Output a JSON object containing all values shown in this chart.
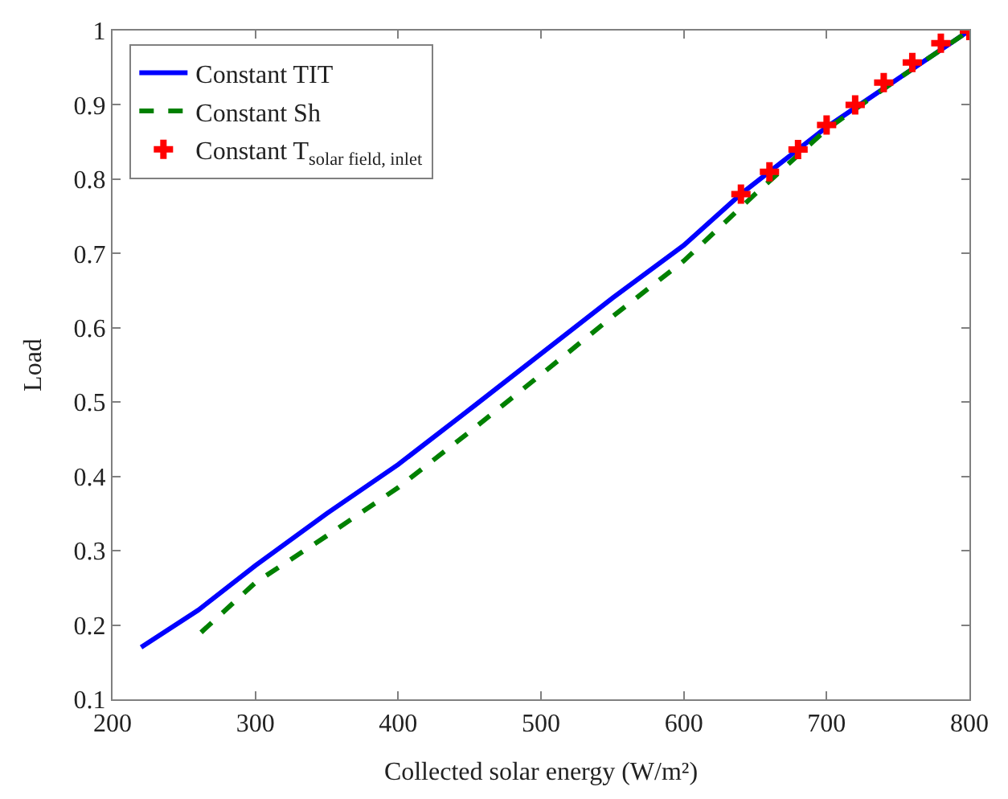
{
  "chart_data": {
    "type": "line",
    "xlabel": "Collected solar energy (W/m²)",
    "ylabel": "Load",
    "xlim": [
      200,
      800
    ],
    "xticks": [
      200,
      300,
      400,
      500,
      600,
      700,
      800
    ],
    "ylim": [
      0.1,
      1
    ],
    "yticks": [
      0.1,
      0.2,
      0.3,
      0.4,
      0.5,
      0.6,
      0.7,
      0.8,
      0.9,
      1
    ],
    "legend": "top left",
    "series": [
      {
        "name": "Constant TIT",
        "color": "#0000ff",
        "line_style": "solid",
        "x": [
          220,
          260,
          300,
          350,
          400,
          450,
          500,
          550,
          600,
          640,
          700,
          750,
          800
        ],
        "values": [
          0.17,
          0.22,
          0.28,
          0.35,
          0.416,
          0.49,
          0.565,
          0.64,
          0.711,
          0.78,
          0.87,
          0.935,
          1.0
        ]
      },
      {
        "name": "Constant Sh",
        "color": "#008000",
        "type": "line",
        "line_style": "dashed",
        "x": [
          262,
          300,
          350,
          400,
          450,
          500,
          550,
          600,
          650,
          700,
          750,
          800
        ],
        "values": [
          0.19,
          0.257,
          0.32,
          0.385,
          0.46,
          0.537,
          0.615,
          0.69,
          0.78,
          0.867,
          0.935,
          1.0
        ]
      },
      {
        "name": "Constant T$_{solar field, inlet}$",
        "color": "#ff0000",
        "type": "scatter",
        "marker": "cross",
        "x": [
          640,
          660,
          680,
          700,
          720,
          740,
          760,
          780,
          800
        ],
        "values": [
          0.78,
          0.81,
          0.84,
          0.873,
          0.9,
          0.93,
          0.957,
          0.983,
          1.0
        ]
      }
    ]
  }
}
